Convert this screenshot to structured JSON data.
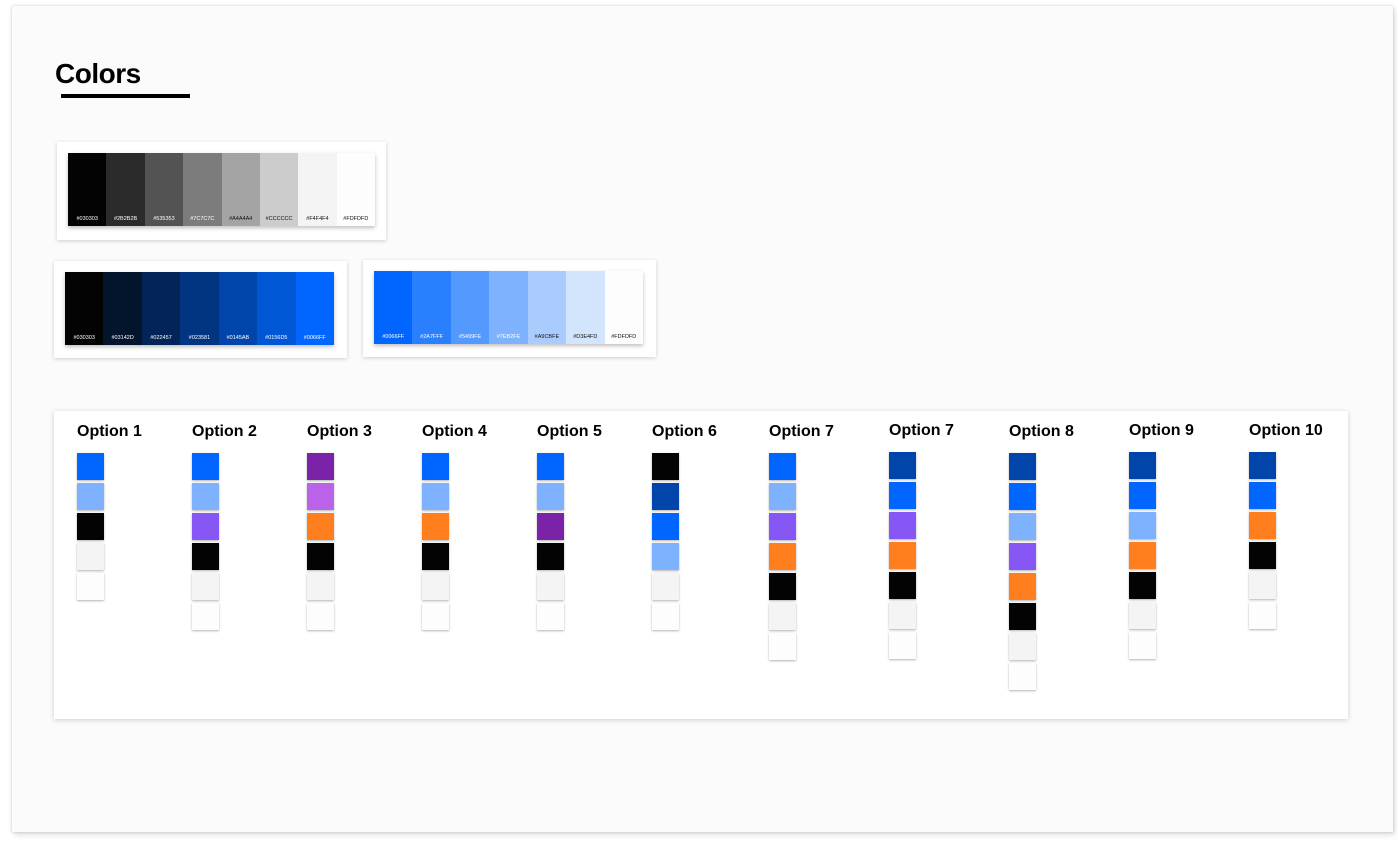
{
  "title": "Colors",
  "palettes": [
    {
      "id": "neutrals",
      "swatches": [
        {
          "hex": "#030303",
          "label": "#030303",
          "text": "#ffffff"
        },
        {
          "hex": "#2B2B2B",
          "label": "#2B2B2B",
          "text": "#ffffff"
        },
        {
          "hex": "#535353",
          "label": "#535353",
          "text": "#ffffff"
        },
        {
          "hex": "#7C7C7C",
          "label": "#7C7C7C",
          "text": "#ffffff"
        },
        {
          "hex": "#A4A4A4",
          "label": "#A4A4A4",
          "text": "#111111"
        },
        {
          "hex": "#CCCCCC",
          "label": "#CCCCCC",
          "text": "#111111"
        },
        {
          "hex": "#F4F4F4",
          "label": "#F4F4F4",
          "text": "#111111"
        },
        {
          "hex": "#FDFDFD",
          "label": "#FDFDFD",
          "text": "#111111"
        }
      ]
    },
    {
      "id": "blue-shades",
      "swatches": [
        {
          "hex": "#030303",
          "label": "#030303",
          "text": "#ffffff"
        },
        {
          "hex": "#03142D",
          "label": "#03142D",
          "text": "#ffffff"
        },
        {
          "hex": "#022457",
          "label": "#022457",
          "text": "#ffffff"
        },
        {
          "hex": "#023581",
          "label": "#023581",
          "text": "#ffffff"
        },
        {
          "hex": "#0145AB",
          "label": "#0145AB",
          "text": "#ffffff"
        },
        {
          "hex": "#0156D5",
          "label": "#0156D5",
          "text": "#ffffff"
        },
        {
          "hex": "#0066FF",
          "label": "#0066FF",
          "text": "#ffffff"
        }
      ]
    },
    {
      "id": "blue-tints",
      "swatches": [
        {
          "hex": "#0066FF",
          "label": "#0066FF",
          "text": "#ffffff"
        },
        {
          "hex": "#2A7FFF",
          "label": "#2A7FFF",
          "text": "#ffffff"
        },
        {
          "hex": "#5499FE",
          "label": "#5499FE",
          "text": "#ffffff"
        },
        {
          "hex": "#7EB2FE",
          "label": "#7EB2FE",
          "text": "#ffffff"
        },
        {
          "hex": "#A9CBFE",
          "label": "#A9CBFE",
          "text": "#111111"
        },
        {
          "hex": "#D3E4FD",
          "label": "#D3E4FD",
          "text": "#111111"
        },
        {
          "hex": "#FDFDFD",
          "label": "#FDFDFD",
          "text": "#111111"
        }
      ]
    }
  ],
  "options": [
    {
      "label": "Option 1",
      "colors": [
        "#0066FF",
        "#7EB2FE",
        "#030303",
        "#F4F4F4",
        "#FDFDFD"
      ]
    },
    {
      "label": "Option 2",
      "colors": [
        "#0066FF",
        "#7EB2FE",
        "#8757F5",
        "#030303",
        "#F4F4F4",
        "#FDFDFD"
      ]
    },
    {
      "label": "Option 3",
      "colors": [
        "#7A22A8",
        "#BA63E8",
        "#FF7F1F",
        "#030303",
        "#F4F4F4",
        "#FDFDFD"
      ]
    },
    {
      "label": "Option 4",
      "colors": [
        "#0066FF",
        "#7EB2FE",
        "#FF7F1F",
        "#030303",
        "#F4F4F4",
        "#FDFDFD"
      ]
    },
    {
      "label": "Option 5",
      "colors": [
        "#0066FF",
        "#7EB2FE",
        "#7A22A8",
        "#030303",
        "#F4F4F4",
        "#FDFDFD"
      ]
    },
    {
      "label": "Option 6",
      "colors": [
        "#030303",
        "#0145AB",
        "#0066FF",
        "#7EB2FE",
        "#F4F4F4",
        "#FDFDFD"
      ]
    },
    {
      "label": "Option 7",
      "colors": [
        "#0066FF",
        "#7EB2FE",
        "#8757F5",
        "#FF7F1F",
        "#030303",
        "#F4F4F4",
        "#FDFDFD"
      ]
    },
    {
      "label": "Option 7",
      "colors": [
        "#0145AB",
        "#0066FF",
        "#8757F5",
        "#FF7F1F",
        "#030303",
        "#F4F4F4",
        "#FDFDFD"
      ]
    },
    {
      "label": "Option 8",
      "colors": [
        "#0145AB",
        "#0066FF",
        "#7EB2FE",
        "#8757F5",
        "#FF7F1F",
        "#030303",
        "#F4F4F4",
        "#FDFDFD"
      ]
    },
    {
      "label": "Option 9",
      "colors": [
        "#0145AB",
        "#0066FF",
        "#7EB2FE",
        "#FF7F1F",
        "#030303",
        "#F4F4F4",
        "#FDFDFD"
      ]
    },
    {
      "label": "Option 10",
      "colors": [
        "#0145AB",
        "#0066FF",
        "#FF7F1F",
        "#030303",
        "#F4F4F4",
        "#FDFDFD"
      ]
    }
  ]
}
